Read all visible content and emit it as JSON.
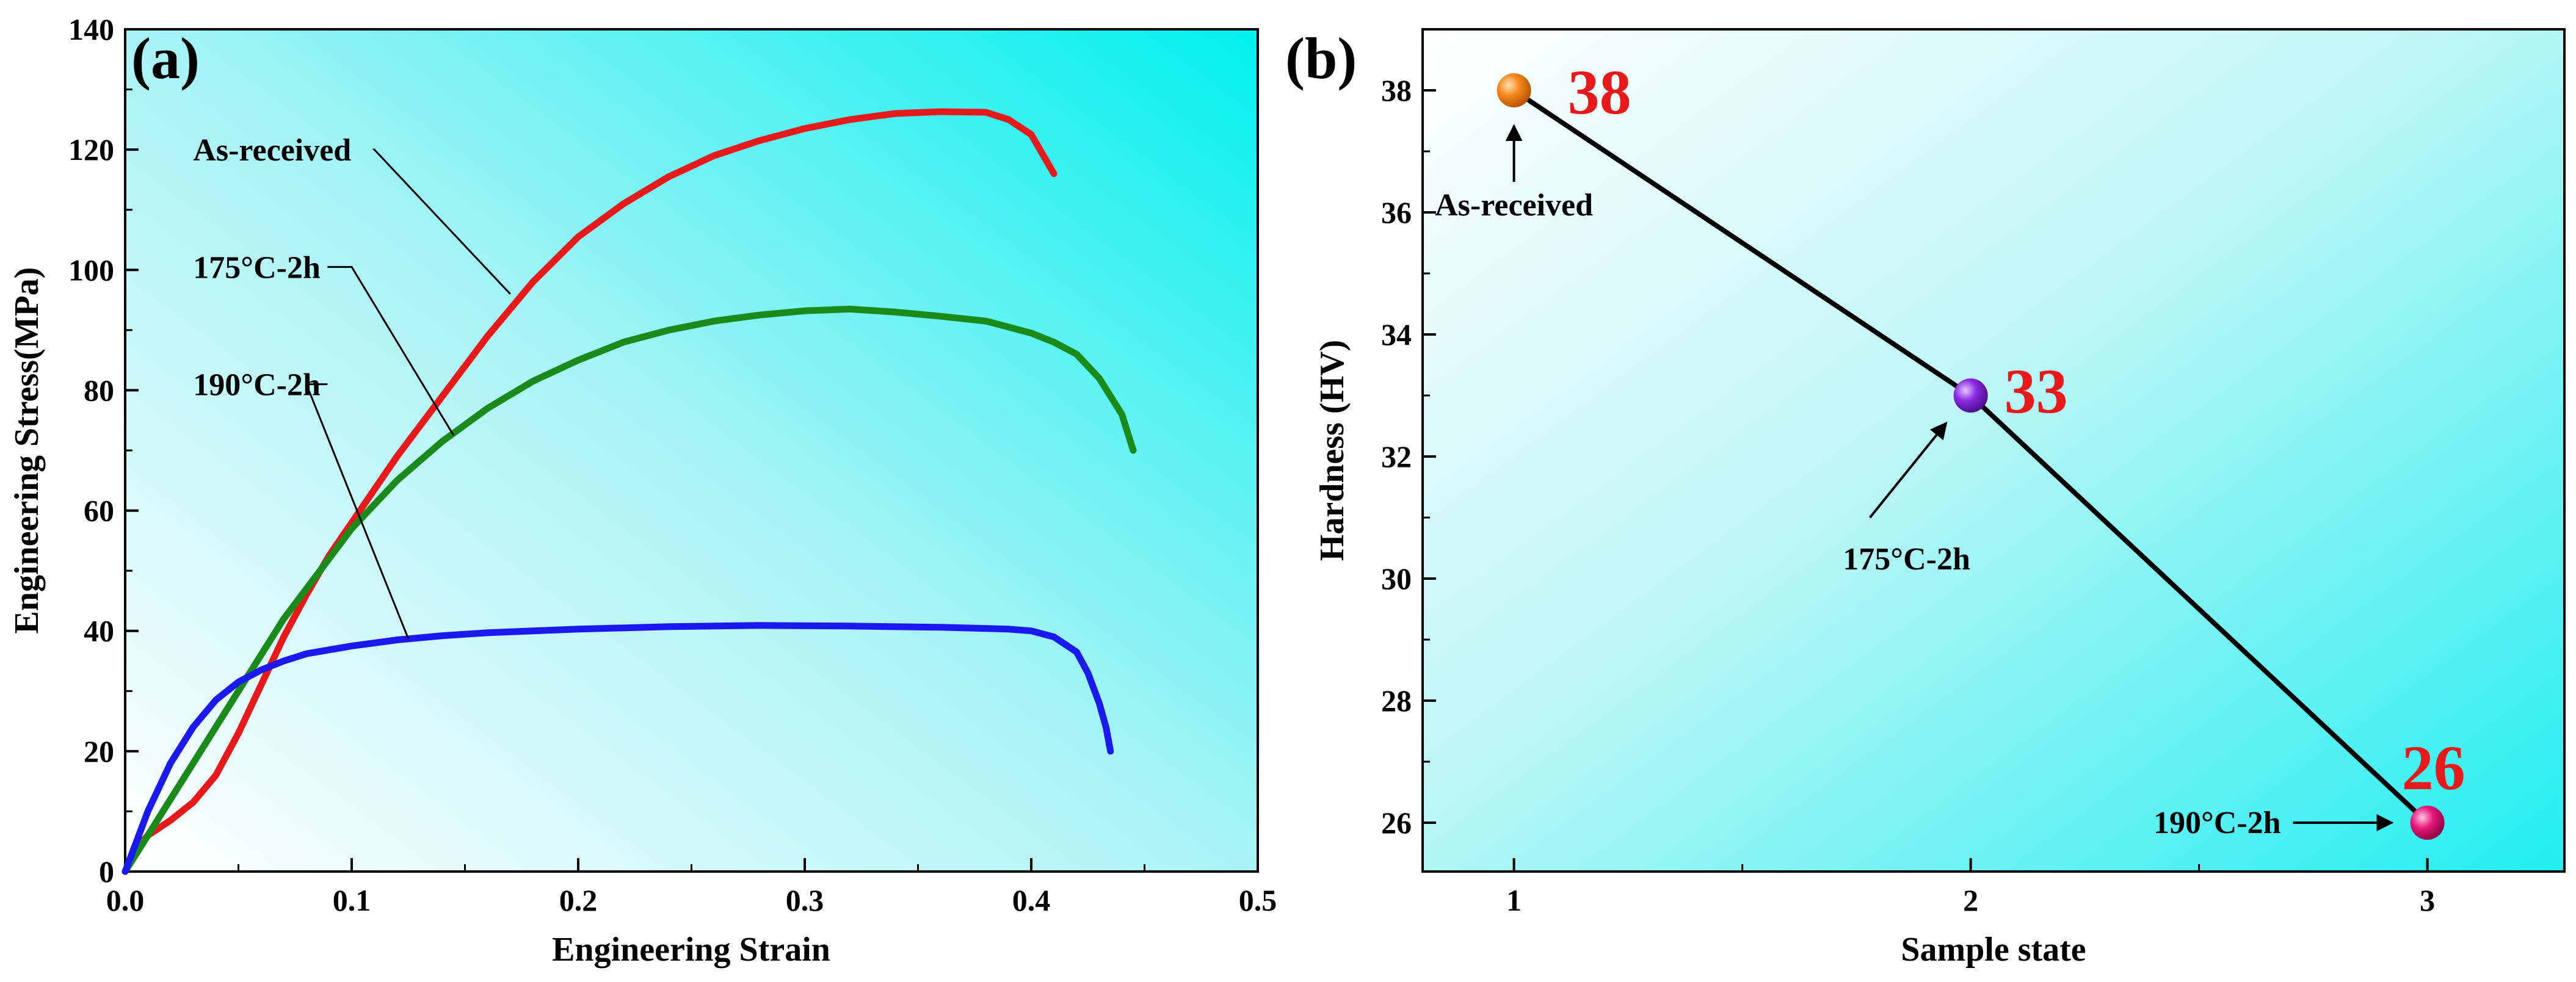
{
  "chart_data": [
    {
      "panel": "(a)",
      "type": "line",
      "title": "",
      "xlabel": "Engineering Strain",
      "ylabel": "Engineering Stress(MPa)",
      "xlim": [
        0.0,
        0.5
      ],
      "ylim": [
        0,
        140
      ],
      "xticks": [
        "0.0",
        "0.1",
        "0.2",
        "0.3",
        "0.4",
        "0.5"
      ],
      "yticks": [
        "0",
        "20",
        "40",
        "60",
        "80",
        "100",
        "120",
        "140"
      ],
      "grid": false,
      "series": [
        {
          "name": "As-received",
          "color": "#e8191b",
          "points": [
            [
              0,
              0
            ],
            [
              0.005,
              4
            ],
            [
              0.01,
              6
            ],
            [
              0.02,
              8.5
            ],
            [
              0.03,
              11.5
            ],
            [
              0.04,
              16
            ],
            [
              0.05,
              23
            ],
            [
              0.06,
              31
            ],
            [
              0.07,
              39
            ],
            [
              0.08,
              46
            ],
            [
              0.09,
              52.5
            ],
            [
              0.1,
              58
            ],
            [
              0.12,
              69
            ],
            [
              0.14,
              79
            ],
            [
              0.16,
              89
            ],
            [
              0.18,
              98
            ],
            [
              0.2,
              105.5
            ],
            [
              0.22,
              111
            ],
            [
              0.24,
              115.5
            ],
            [
              0.26,
              119
            ],
            [
              0.28,
              121.5
            ],
            [
              0.3,
              123.5
            ],
            [
              0.32,
              125
            ],
            [
              0.34,
              126
            ],
            [
              0.36,
              126.3
            ],
            [
              0.38,
              126.2
            ],
            [
              0.39,
              125
            ],
            [
              0.4,
              122.5
            ],
            [
              0.41,
              116
            ]
          ]
        },
        {
          "name": "175°C-2h",
          "color": "#1a8a1a",
          "points": [
            [
              0,
              0
            ],
            [
              0.01,
              6
            ],
            [
              0.02,
              12
            ],
            [
              0.03,
              18
            ],
            [
              0.04,
              24
            ],
            [
              0.05,
              30
            ],
            [
              0.06,
              36
            ],
            [
              0.07,
              42
            ],
            [
              0.08,
              47
            ],
            [
              0.1,
              57
            ],
            [
              0.12,
              65
            ],
            [
              0.14,
              71.5
            ],
            [
              0.16,
              77
            ],
            [
              0.18,
              81.5
            ],
            [
              0.2,
              85
            ],
            [
              0.22,
              88
            ],
            [
              0.24,
              90
            ],
            [
              0.26,
              91.5
            ],
            [
              0.28,
              92.5
            ],
            [
              0.3,
              93.2
            ],
            [
              0.32,
              93.5
            ],
            [
              0.34,
              93
            ],
            [
              0.36,
              92.3
            ],
            [
              0.38,
              91.5
            ],
            [
              0.4,
              89.5
            ],
            [
              0.41,
              88
            ],
            [
              0.42,
              86
            ],
            [
              0.43,
              82
            ],
            [
              0.44,
              76
            ],
            [
              0.445,
              70
            ]
          ]
        },
        {
          "name": "190°C-2h",
          "color": "#1a1af0",
          "points": [
            [
              0,
              0
            ],
            [
              0.005,
              5
            ],
            [
              0.01,
              10
            ],
            [
              0.02,
              18
            ],
            [
              0.03,
              24
            ],
            [
              0.04,
              28.5
            ],
            [
              0.05,
              31.5
            ],
            [
              0.06,
              33.5
            ],
            [
              0.07,
              35
            ],
            [
              0.08,
              36.2
            ],
            [
              0.1,
              37.5
            ],
            [
              0.12,
              38.5
            ],
            [
              0.14,
              39.2
            ],
            [
              0.16,
              39.7
            ],
            [
              0.2,
              40.3
            ],
            [
              0.24,
              40.7
            ],
            [
              0.28,
              40.9
            ],
            [
              0.32,
              40.8
            ],
            [
              0.36,
              40.6
            ],
            [
              0.39,
              40.3
            ],
            [
              0.4,
              40
            ],
            [
              0.41,
              39
            ],
            [
              0.42,
              36.5
            ],
            [
              0.425,
              33
            ],
            [
              0.43,
              28
            ],
            [
              0.433,
              24
            ],
            [
              0.435,
              20
            ]
          ]
        }
      ],
      "annotations": [
        {
          "text": "As-received",
          "target": [
            0.17,
            96
          ],
          "elbow": [
            0.11,
            120
          ],
          "label_at": [
            0.03,
            120
          ]
        },
        {
          "text": "175°C-2h",
          "target": [
            0.145,
            72.5
          ],
          "elbow": [
            0.1,
            100.5
          ],
          "label_at": [
            0.03,
            100.5
          ]
        },
        {
          "text": "190°C-2h",
          "target": [
            0.125,
            38.7
          ],
          "elbow": [
            0.08,
            81
          ],
          "label_at": [
            0.03,
            81
          ]
        }
      ]
    },
    {
      "panel": "(b)",
      "type": "line",
      "title": "",
      "xlabel": "Sample state",
      "ylabel": "Hardness (HV)",
      "xlim": [
        0.8,
        3.3
      ],
      "ylim": [
        25.2,
        39.0
      ],
      "xticks": [
        "1",
        "2",
        "3"
      ],
      "yticks": [
        "26",
        "28",
        "30",
        "32",
        "34",
        "36",
        "38"
      ],
      "grid": false,
      "series": [
        {
          "name": "Hardness",
          "color": "#000000",
          "x": [
            1,
            2,
            3
          ],
          "values": [
            38,
            33,
            26
          ],
          "marker_colors": [
            "#f5871f",
            "#8a2be2",
            "#e6197a"
          ],
          "value_labels": [
            "38",
            "33",
            "26"
          ],
          "value_label_color": "#e8191b"
        }
      ],
      "annotations": [
        {
          "text": "As-received",
          "points_to": [
            1,
            38
          ],
          "direction": "up"
        },
        {
          "text": "175°C-2h",
          "points_to": [
            2,
            33
          ],
          "direction": "up-right"
        },
        {
          "text": "190°C-2h",
          "points_to": [
            3,
            26
          ],
          "direction": "right"
        }
      ]
    }
  ]
}
